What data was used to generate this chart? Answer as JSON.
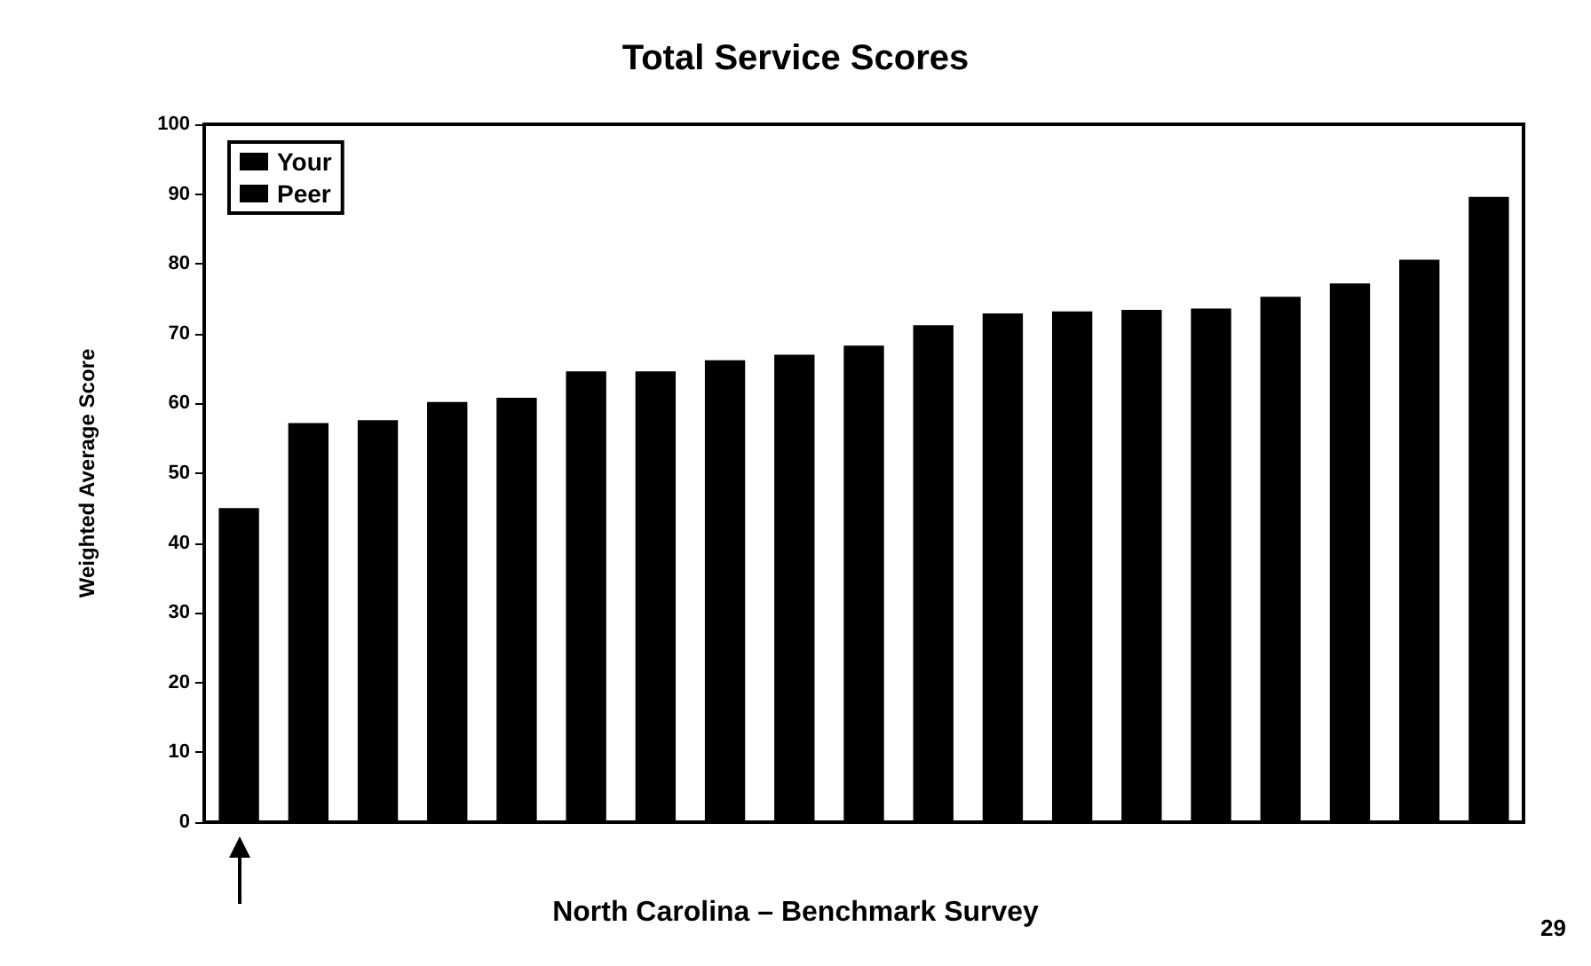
{
  "chart_data": {
    "type": "bar",
    "title": "Total Service Scores",
    "ylabel": "Weighted Average Score",
    "categories": [
      null,
      null,
      null,
      null,
      null,
      null,
      null,
      null,
      null,
      null,
      null,
      null,
      null,
      null,
      null,
      null,
      null,
      null,
      null
    ],
    "series": [
      {
        "name": "Your",
        "color": "#000000",
        "values": [
          45,
          null,
          null,
          null,
          null,
          null,
          null,
          null,
          null,
          null,
          null,
          null,
          null,
          null,
          null,
          null,
          null,
          null,
          null
        ]
      },
      {
        "name": "Peer",
        "color": "#000000",
        "values": [
          null,
          57.2,
          57.6,
          60.2,
          60.8,
          64.6,
          64.6,
          66.2,
          67,
          68.3,
          71.2,
          72.9,
          73.2,
          73.4,
          73.6,
          75.3,
          77.2,
          80.6,
          89.6
        ]
      }
    ],
    "stacked": true,
    "ylim": [
      0,
      100
    ],
    "yticks": [
      0,
      10,
      20,
      30,
      40,
      50,
      60,
      70,
      80,
      90,
      100
    ],
    "grid": false,
    "legend": "top left",
    "annotations": [
      "North Carolina – Benchmark Survey",
      "29"
    ]
  }
}
